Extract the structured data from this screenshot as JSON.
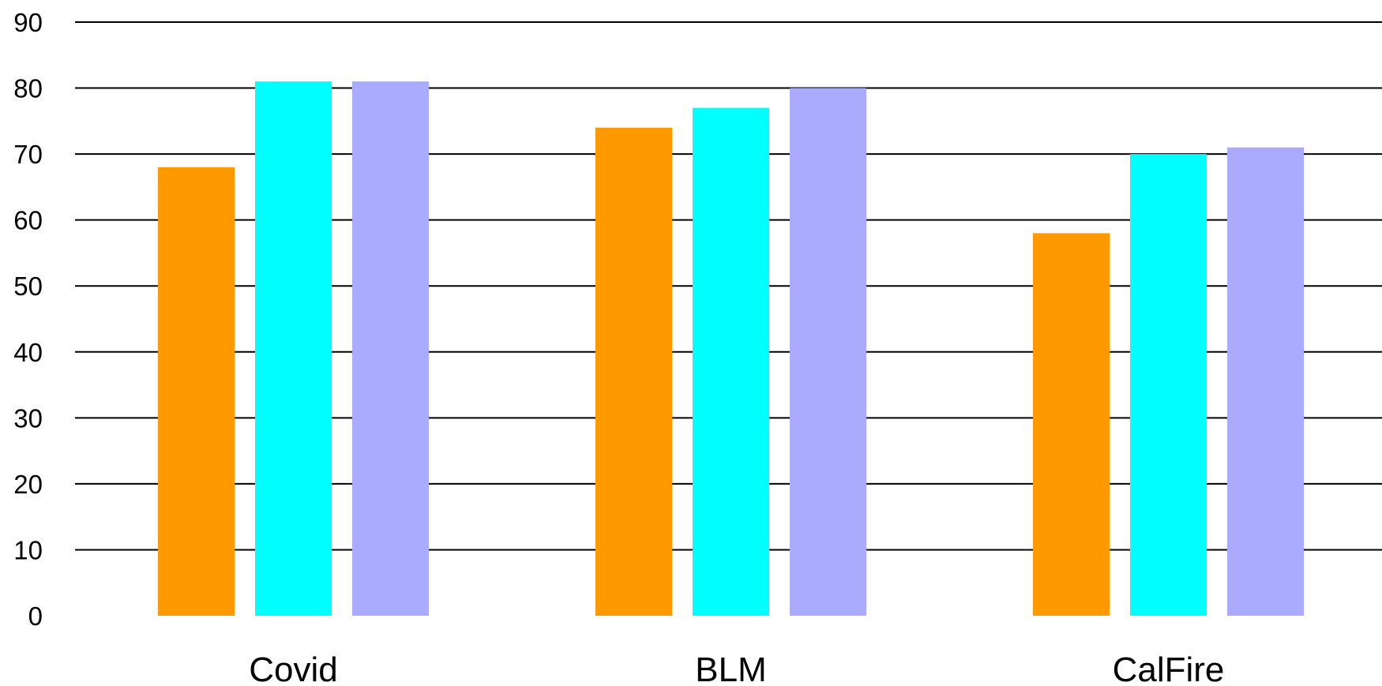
{
  "chart_data": {
    "type": "bar",
    "title": "",
    "xlabel": "",
    "ylabel": "",
    "categories": [
      "Covid",
      "BLM",
      "CalFire"
    ],
    "series": [
      {
        "values": [
          68,
          74,
          58
        ],
        "color": "#FF9900"
      },
      {
        "values": [
          81,
          77,
          70
        ],
        "color": "#00FFFF"
      },
      {
        "values": [
          81,
          80,
          71
        ],
        "color": "#AAAAFF"
      }
    ],
    "ylim": [
      0,
      90
    ],
    "yticks": [
      0,
      10,
      20,
      30,
      40,
      50,
      60,
      70,
      80,
      90
    ],
    "grid": true,
    "legend": "none"
  }
}
